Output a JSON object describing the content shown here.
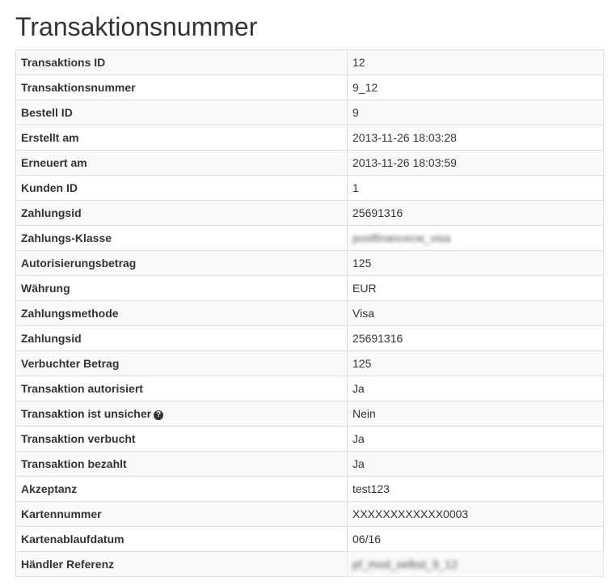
{
  "title": "Transaktionsnummer",
  "rows": [
    {
      "label": "Transaktions ID",
      "value": "12"
    },
    {
      "label": "Transaktionsnummer",
      "value": "9_12"
    },
    {
      "label": "Bestell ID",
      "value": "9"
    },
    {
      "label": "Erstellt am",
      "value": "2013-11-26 18:03:28"
    },
    {
      "label": "Erneuert am",
      "value": "2013-11-26 18:03:59"
    },
    {
      "label": "Kunden ID",
      "value": "1"
    },
    {
      "label": "Zahlungsid",
      "value": "25691316"
    },
    {
      "label": "Zahlungs-Klasse",
      "value": "postfinancecw_visa",
      "blurred": true
    },
    {
      "label": "Autorisierungsbetrag",
      "value": "125"
    },
    {
      "label": "Währung",
      "value": "EUR"
    },
    {
      "label": "Zahlungsmethode",
      "value": "Visa"
    },
    {
      "label": "Zahlungsid",
      "value": "25691316"
    },
    {
      "label": "Verbuchter Betrag",
      "value": "125"
    },
    {
      "label": "Transaktion autorisiert",
      "value": "Ja"
    },
    {
      "label": "Transaktion ist unsicher",
      "value": "Nein",
      "icon": "question-circle-icon"
    },
    {
      "label": "Transaktion verbucht",
      "value": "Ja"
    },
    {
      "label": "Transaktion bezahlt",
      "value": "Ja"
    },
    {
      "label": "Akzeptanz",
      "value": "test123"
    },
    {
      "label": "Kartennummer",
      "value": "XXXXXXXXXXXX0003"
    },
    {
      "label": "Kartenablaufdatum",
      "value": "06/16"
    },
    {
      "label": "Händler Referenz",
      "value": "pf_mod_selbst_9_12",
      "blurred": true
    }
  ]
}
